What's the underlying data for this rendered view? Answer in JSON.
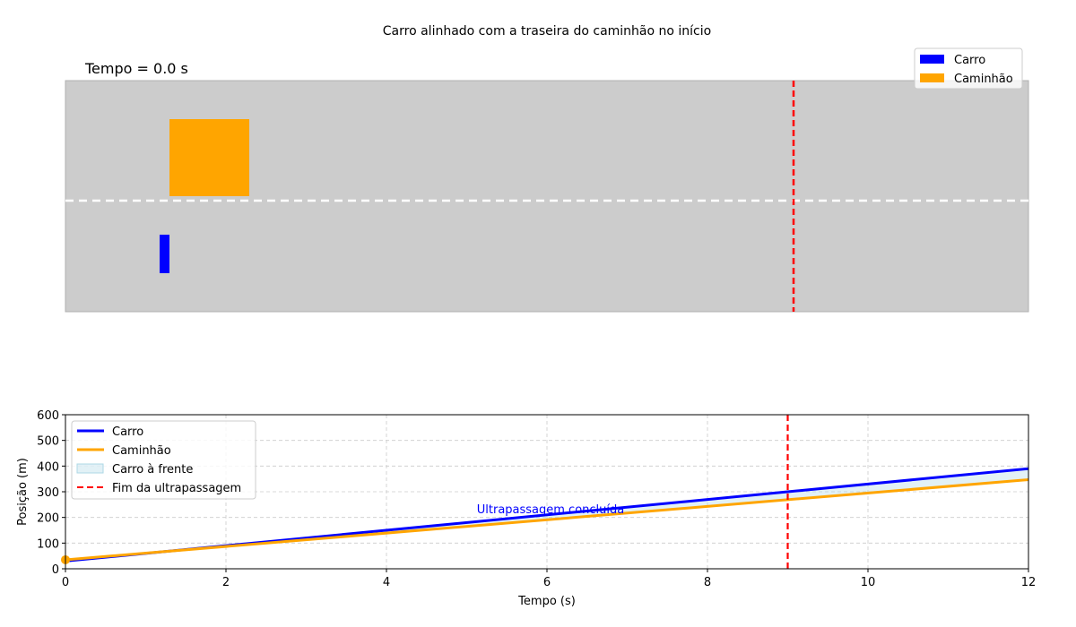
{
  "figure": {
    "title": "Carro alinhado com a traseira do caminhão no início",
    "time_label": "Tempo = 0.0 s"
  },
  "colors": {
    "car": "#0000ff",
    "truck": "#ffa500",
    "finish": "#ff0000",
    "road": "#cccccc",
    "lane_line": "#ffffff",
    "ahead_fill": "#add8e6"
  },
  "road_view": {
    "legend": [
      {
        "label": "Carro",
        "color": "#0000ff"
      },
      {
        "label": "Caminhão",
        "color": "#ffa500"
      }
    ]
  },
  "chart_data": {
    "type": "line",
    "xlabel": "Tempo (s)",
    "ylabel": "Posição (m)",
    "xlim": [
      0,
      12
    ],
    "ylim": [
      0,
      600
    ],
    "xticks": [
      0,
      2,
      4,
      6,
      8,
      10,
      12
    ],
    "yticks": [
      0,
      100,
      200,
      300,
      400,
      500,
      600
    ],
    "grid": true,
    "legend_position": "top-left",
    "series": [
      {
        "name": "Carro",
        "color": "#0000ff",
        "x": [
          0,
          12
        ],
        "y": [
          30,
          390
        ]
      },
      {
        "name": "Caminhão",
        "color": "#ffa500",
        "x": [
          0,
          12
        ],
        "y": [
          35,
          347
        ]
      }
    ],
    "fill_between": {
      "name": "Carro à frente",
      "color": "#add8e6"
    },
    "vline": {
      "name": "Fim da ultrapassagem",
      "x": 9.0,
      "color": "#ff0000"
    },
    "markers": [
      {
        "series": "Caminhão",
        "x": 0,
        "y": 35
      }
    ],
    "annotation": {
      "text": "Ultrapassagem concluída",
      "x": 6.0,
      "y": 230,
      "color": "#0000ff"
    }
  }
}
